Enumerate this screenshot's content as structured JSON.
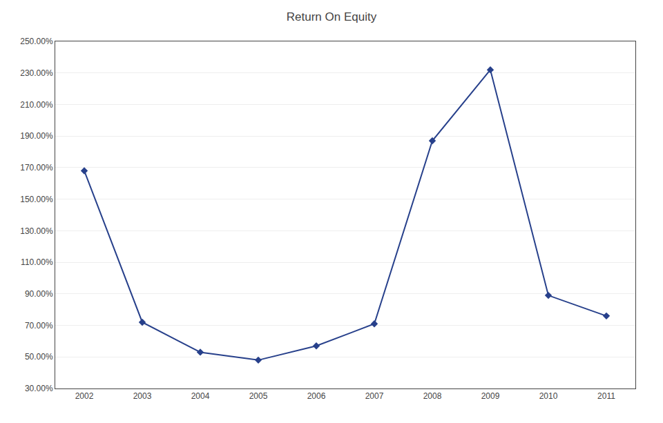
{
  "chart_data": {
    "type": "line",
    "title": "Return On Equity",
    "x": [
      2002,
      2003,
      2004,
      2005,
      2006,
      2007,
      2008,
      2009,
      2010,
      2011
    ],
    "values": [
      1.68,
      0.72,
      0.53,
      0.48,
      0.57,
      0.71,
      1.87,
      2.32,
      0.89,
      0.76
    ],
    "color": "#27408B",
    "marker": "diamond",
    "xlim": [
      2001.5,
      2011.5
    ],
    "xticks": [
      2002,
      2003,
      2004,
      2005,
      2006,
      2007,
      2008,
      2009,
      2010,
      2011
    ],
    "ylim": [
      0.3,
      2.5
    ],
    "yticks": [
      {
        "value": 0.3,
        "label": "30.00%"
      },
      {
        "value": 0.5,
        "label": "50.00%"
      },
      {
        "value": 0.7,
        "label": "70.00%"
      },
      {
        "value": 0.9,
        "label": "90.00%"
      },
      {
        "value": 1.1,
        "label": "110.00%"
      },
      {
        "value": 1.3,
        "label": "130.00%"
      },
      {
        "value": 1.5,
        "label": "150.00%"
      },
      {
        "value": 1.7,
        "label": "170.00%"
      },
      {
        "value": 1.9,
        "label": "190.00%"
      },
      {
        "value": 2.1,
        "label": "210.00%"
      },
      {
        "value": 2.3,
        "label": "230.00%"
      },
      {
        "value": 2.5,
        "label": "250.00%"
      }
    ],
    "grid": true
  }
}
